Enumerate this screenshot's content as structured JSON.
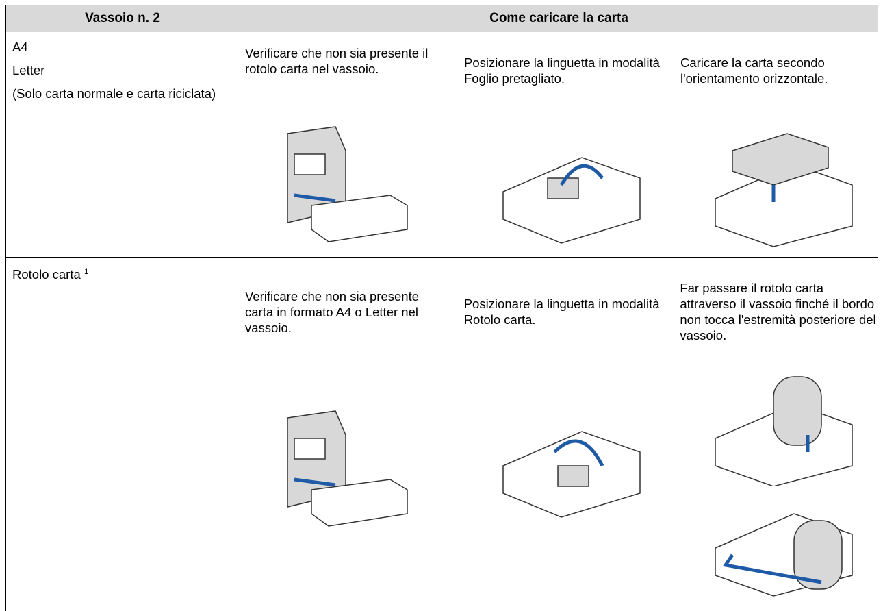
{
  "table": {
    "header": [
      "Vassoio n. 2",
      "Come caricare la carta"
    ],
    "rows": [
      {
        "tray": [
          "A4",
          "Letter",
          "(Solo carta normale e carta riciclata)"
        ],
        "steps": [
          "Verificare che non sia presente il rotolo carta nel vassoio.",
          "Posizionare la linguetta in modalità Foglio pretagliato.",
          "Caricare la carta secondo l'orientamento orizzontale."
        ]
      },
      {
        "tray": [
          "Rotolo carta"
        ],
        "footnote": "1",
        "steps": [
          "Verificare che non sia presente carta in formato A4 o Letter nel vassoio.",
          "Posizionare la linguetta in modalità Rotolo carta.",
          "Far passare il rotolo carta attraverso il vassoio finché il bordo non tocca l'estremità posteriore del vassoio."
        ]
      }
    ]
  }
}
